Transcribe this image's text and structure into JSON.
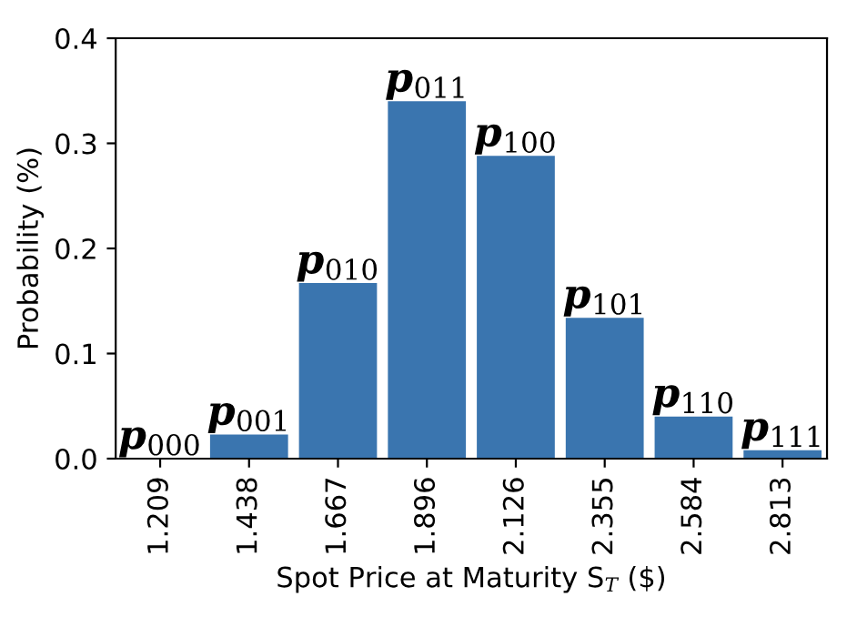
{
  "chart_data": {
    "type": "bar",
    "xlabel": "Spot Price at Maturity S$_{T}$ ($)",
    "ylabel": "Probability (%)",
    "categories": [
      "1.209",
      "1.438",
      "1.667",
      "1.896",
      "2.126",
      "2.355",
      "2.584",
      "2.813"
    ],
    "values": [
      0.001,
      0.024,
      0.168,
      0.341,
      0.289,
      0.135,
      0.041,
      0.009
    ],
    "color": "#3a75af",
    "ylim": [
      0,
      0.4
    ],
    "yticks": [
      {
        "value": 0,
        "label": "0.0"
      },
      0.1,
      0.2,
      0.3,
      0.4
    ],
    "grid": false,
    "legend": false,
    "annotations": [
      {
        "text": "p$_{000}$",
        "x": "1.209",
        "y": 0.001
      },
      {
        "text": "p$_{001}$",
        "x": "1.438",
        "y": 0.024
      },
      {
        "text": "p$_{010}$",
        "x": "1.667",
        "y": 0.168
      },
      {
        "text": "p$_{011}$",
        "x": "1.896",
        "y": 0.341
      },
      {
        "text": "p$_{100}$",
        "x": "2.126",
        "y": 0.289
      },
      {
        "text": "p$_{101}$",
        "x": "2.355",
        "y": 0.135
      },
      {
        "text": "p$_{110}$",
        "x": "2.584",
        "y": 0.041
      },
      {
        "text": "p$_{111}$",
        "x": "2.813",
        "y": 0.009
      }
    ]
  }
}
